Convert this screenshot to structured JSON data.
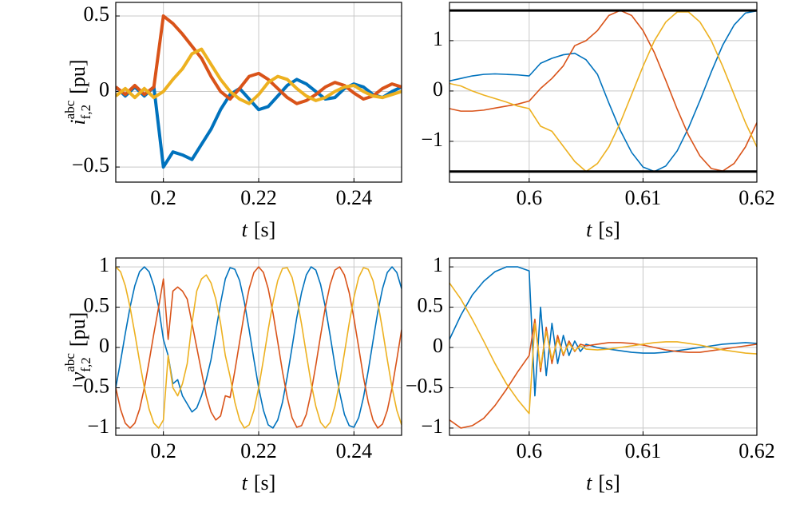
{
  "chart_data": [
    {
      "type": "line",
      "xlim": [
        0.19,
        0.25
      ],
      "ylim": [
        -0.6,
        0.59
      ],
      "xticks": [
        0.2,
        0.22,
        0.24
      ],
      "yticks": [
        0.5,
        0,
        {
          "value": -0.5,
          "label": "−0.5"
        }
      ],
      "grid": true,
      "line_width": 4,
      "xlabel": {
        "symbol": "t",
        "unit": "[s]"
      },
      "ylabel": {
        "symbol": "i",
        "sub": "f,2",
        "sup": "abc",
        "unit": "[pu]"
      },
      "x": [
        0.19,
        0.192,
        0.194,
        0.196,
        0.198,
        0.2,
        0.202,
        0.204,
        0.206,
        0.208,
        0.21,
        0.212,
        0.214,
        0.216,
        0.218,
        0.22,
        0.222,
        0.224,
        0.226,
        0.228,
        0.23,
        0.232,
        0.234,
        0.236,
        0.238,
        0.24,
        0.242,
        0.244,
        0.246,
        0.248,
        0.25
      ],
      "series": [
        {
          "color": "#0072BD",
          "values": [
            0.03,
            -0.03,
            0.03,
            -0.03,
            0.03,
            -0.5,
            -0.4,
            -0.42,
            -0.45,
            -0.35,
            -0.25,
            -0.12,
            -0.02,
            0.02,
            -0.05,
            -0.12,
            -0.1,
            -0.03,
            0.04,
            0.08,
            0.05,
            0.0,
            -0.05,
            -0.04,
            0.02,
            0.05,
            0.03,
            -0.02,
            -0.04,
            0.0,
            0.03
          ]
        },
        {
          "color": "#D95319",
          "values": [
            0.03,
            -0.02,
            0.04,
            -0.02,
            0.03,
            0.5,
            0.45,
            0.38,
            0.3,
            0.22,
            0.1,
            0.0,
            -0.05,
            0.02,
            0.1,
            0.12,
            0.08,
            0.02,
            -0.04,
            -0.08,
            -0.06,
            -0.02,
            0.03,
            0.06,
            0.04,
            -0.01,
            -0.05,
            -0.03,
            0.02,
            0.05,
            0.03
          ]
        },
        {
          "color": "#EDB120",
          "values": [
            -0.03,
            0.02,
            -0.04,
            0.02,
            -0.04,
            0.0,
            0.08,
            0.15,
            0.25,
            0.28,
            0.18,
            0.08,
            0.0,
            -0.05,
            -0.08,
            -0.02,
            0.06,
            0.1,
            0.08,
            0.02,
            -0.03,
            -0.06,
            -0.04,
            0.0,
            0.03,
            0.04,
            0.0,
            -0.03,
            -0.04,
            -0.02,
            0.0
          ]
        }
      ]
    },
    {
      "type": "line",
      "xlim": [
        0.593,
        0.62
      ],
      "ylim": [
        -1.81,
        1.76
      ],
      "xticks": [
        0.6,
        0.61,
        0.62
      ],
      "yticks": [
        1,
        0,
        {
          "value": -1,
          "label": "−1"
        }
      ],
      "grid": true,
      "line_width": 1.6,
      "hlines": [
        1.6,
        -1.6
      ],
      "xlabel": {
        "symbol": "t",
        "unit": "[s]"
      },
      "x": [
        0.593,
        0.594,
        0.595,
        0.596,
        0.597,
        0.598,
        0.599,
        0.6,
        0.601,
        0.602,
        0.603,
        0.604,
        0.605,
        0.606,
        0.607,
        0.608,
        0.609,
        0.61,
        0.611,
        0.612,
        0.613,
        0.614,
        0.615,
        0.616,
        0.617,
        0.618,
        0.619,
        0.62
      ],
      "series": [
        {
          "color": "#0072BD",
          "values": [
            0.2,
            0.25,
            0.3,
            0.33,
            0.34,
            0.33,
            0.32,
            0.3,
            0.55,
            0.65,
            0.72,
            0.75,
            0.62,
            0.33,
            -0.24,
            -0.78,
            -1.22,
            -1.51,
            -1.6,
            -1.49,
            -1.19,
            -0.73,
            -0.19,
            0.38,
            0.91,
            1.31,
            1.55,
            1.59
          ]
        },
        {
          "color": "#D95319",
          "values": [
            -0.35,
            -0.4,
            -0.4,
            -0.38,
            -0.34,
            -0.3,
            -0.26,
            -0.2,
            0.05,
            0.25,
            0.5,
            0.9,
            1.0,
            1.2,
            1.5,
            1.6,
            1.5,
            1.2,
            0.76,
            0.21,
            -0.36,
            -0.88,
            -1.29,
            -1.54,
            -1.59,
            -1.44,
            -1.11,
            -0.63
          ]
        },
        {
          "color": "#EDB120",
          "values": [
            0.15,
            0.1,
            0.0,
            -0.08,
            -0.15,
            -0.22,
            -0.3,
            -0.35,
            -0.7,
            -0.8,
            -1.1,
            -1.4,
            -1.6,
            -1.44,
            -1.11,
            -0.63,
            -0.07,
            0.49,
            1.0,
            1.37,
            1.57,
            1.57,
            1.37,
            1.0,
            0.49,
            -0.07,
            -0.63,
            -1.11
          ]
        }
      ]
    },
    {
      "type": "line",
      "xlim": [
        0.19,
        0.25
      ],
      "ylim": [
        -1.09,
        1.11
      ],
      "xticks": [
        0.2,
        0.22,
        0.24
      ],
      "yticks": [
        1,
        0.5,
        0,
        {
          "value": -0.5,
          "label": "−0.5"
        },
        {
          "value": -1,
          "label": "−1"
        }
      ],
      "grid": true,
      "line_width": 1.6,
      "xlabel": {
        "symbol": "t",
        "unit": "[s]"
      },
      "ylabel": {
        "symbol": "v",
        "sub": "f,2",
        "sup": "abc",
        "unit": "[pu]"
      },
      "x": [
        0.19,
        0.191,
        0.192,
        0.193,
        0.194,
        0.195,
        0.196,
        0.197,
        0.198,
        0.199,
        0.2,
        0.201,
        0.202,
        0.203,
        0.204,
        0.205,
        0.206,
        0.207,
        0.208,
        0.209,
        0.21,
        0.211,
        0.212,
        0.213,
        0.214,
        0.215,
        0.216,
        0.217,
        0.218,
        0.219,
        0.22,
        0.221,
        0.222,
        0.223,
        0.224,
        0.225,
        0.226,
        0.227,
        0.228,
        0.229,
        0.23,
        0.231,
        0.232,
        0.233,
        0.234,
        0.235,
        0.236,
        0.237,
        0.238,
        0.239,
        0.24,
        0.241,
        0.242,
        0.243,
        0.244,
        0.245,
        0.246,
        0.247,
        0.248,
        0.249,
        0.25
      ],
      "series": [
        {
          "color": "#0072BD",
          "values": [
            -0.5,
            -0.174,
            0.174,
            0.5,
            0.766,
            0.94,
            1,
            0.94,
            0.766,
            0.5,
            0.1,
            -0.1,
            -0.45,
            -0.4,
            -0.6,
            -0.7,
            -0.8,
            -0.75,
            -0.6,
            -0.4,
            -0.15,
            0.2,
            0.55,
            0.85,
            0.99,
            0.97,
            0.83,
            0.56,
            0.22,
            -0.15,
            -0.5,
            -0.78,
            -0.96,
            -1.0,
            -0.9,
            -0.68,
            -0.36,
            0.0,
            0.37,
            0.68,
            0.9,
            1.0,
            0.96,
            0.78,
            0.5,
            0.15,
            -0.22,
            -0.56,
            -0.83,
            -0.97,
            -0.99,
            -0.87,
            -0.62,
            -0.29,
            0.08,
            0.44,
            0.73,
            0.93,
            1.0,
            0.93,
            0.73
          ]
        },
        {
          "color": "#D95319",
          "values": [
            -0.5,
            -0.766,
            -0.94,
            -1,
            -0.94,
            -0.766,
            -0.5,
            -0.174,
            0.174,
            0.5,
            0.85,
            0.1,
            0.7,
            0.75,
            0.7,
            0.6,
            0.3,
            0.0,
            -0.3,
            -0.6,
            -0.8,
            -0.9,
            -0.85,
            -0.6,
            -0.62,
            -0.29,
            0.07,
            0.43,
            0.73,
            0.93,
            1.0,
            0.93,
            0.73,
            0.43,
            0.07,
            -0.3,
            -0.62,
            -0.87,
            -0.99,
            -0.97,
            -0.83,
            -0.56,
            -0.22,
            0.15,
            0.5,
            0.78,
            0.96,
            1.0,
            0.9,
            0.68,
            0.36,
            0.0,
            -0.37,
            -0.68,
            -0.9,
            -1.0,
            -0.95,
            -0.78,
            -0.5,
            -0.15,
            0.22
          ]
        },
        {
          "color": "#EDB120",
          "values": [
            1,
            0.94,
            0.766,
            0.5,
            0.174,
            -0.174,
            -0.5,
            -0.766,
            -0.94,
            -1,
            -0.9,
            -0.1,
            -0.5,
            -0.6,
            -0.45,
            -0.2,
            0.3,
            0.7,
            0.85,
            0.9,
            0.8,
            0.6,
            0.3,
            -0.1,
            -0.36,
            -0.68,
            -0.9,
            -1.0,
            -0.96,
            -0.78,
            -0.5,
            -0.15,
            0.22,
            0.56,
            0.83,
            0.98,
            0.99,
            0.87,
            0.62,
            0.29,
            -0.08,
            -0.44,
            -0.73,
            -0.93,
            -1.0,
            -0.93,
            -0.73,
            -0.43,
            -0.07,
            0.3,
            0.62,
            0.87,
            0.99,
            0.97,
            0.83,
            0.56,
            0.22,
            -0.15,
            -0.5,
            -0.78,
            -0.96
          ]
        }
      ]
    },
    {
      "type": "line",
      "xlim": [
        0.593,
        0.62
      ],
      "ylim": [
        -1.09,
        1.11
      ],
      "xticks": [
        0.6,
        0.61,
        0.62
      ],
      "yticks": [
        1,
        0.5,
        0,
        {
          "value": -0.5,
          "label": "−0.5"
        },
        {
          "value": -1,
          "label": "−1"
        }
      ],
      "grid": true,
      "line_width": 1.6,
      "xlabel": {
        "symbol": "t",
        "unit": "[s]"
      },
      "x": [
        0.593,
        0.594,
        0.595,
        0.596,
        0.597,
        0.598,
        0.599,
        0.6,
        0.6005,
        0.601,
        0.6015,
        0.602,
        0.6025,
        0.603,
        0.6035,
        0.604,
        0.6045,
        0.605,
        0.606,
        0.607,
        0.608,
        0.609,
        0.61,
        0.611,
        0.612,
        0.613,
        0.614,
        0.615,
        0.616,
        0.617,
        0.618,
        0.619,
        0.62
      ],
      "series": [
        {
          "color": "#0072BD",
          "values": [
            0.1,
            0.4,
            0.65,
            0.82,
            0.94,
            1.0,
            1.0,
            0.95,
            -0.6,
            0.5,
            -0.35,
            0.3,
            -0.2,
            0.15,
            -0.1,
            0.08,
            -0.05,
            0.04,
            0.0,
            -0.02,
            -0.04,
            -0.06,
            -0.07,
            -0.07,
            -0.06,
            -0.04,
            -0.02,
            0.0,
            0.02,
            0.04,
            0.05,
            0.06,
            0.05
          ]
        },
        {
          "color": "#D95319",
          "values": [
            -0.9,
            -1.0,
            -0.97,
            -0.88,
            -0.72,
            -0.52,
            -0.3,
            -0.1,
            0.35,
            -0.3,
            0.25,
            -0.2,
            0.15,
            -0.1,
            0.08,
            -0.05,
            0.04,
            0.02,
            0.04,
            0.06,
            0.06,
            0.05,
            0.03,
            0.0,
            -0.03,
            -0.05,
            -0.06,
            -0.06,
            -0.04,
            -0.02,
            0.0,
            0.02,
            0.04
          ]
        },
        {
          "color": "#EDB120",
          "values": [
            0.8,
            0.6,
            0.35,
            0.08,
            -0.2,
            -0.45,
            -0.65,
            -0.82,
            0.3,
            -0.25,
            0.2,
            -0.15,
            0.1,
            -0.08,
            0.05,
            -0.04,
            0.02,
            -0.02,
            -0.03,
            -0.02,
            0.0,
            0.02,
            0.04,
            0.06,
            0.07,
            0.07,
            0.05,
            0.03,
            0.0,
            -0.03,
            -0.05,
            -0.07,
            -0.08
          ]
        }
      ]
    }
  ]
}
